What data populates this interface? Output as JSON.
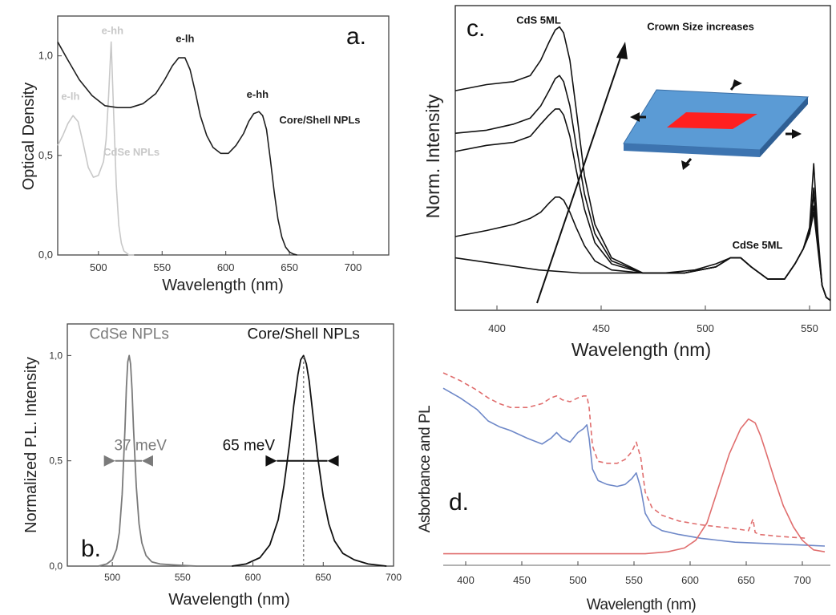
{
  "chart_data": [
    {
      "panel": "a.",
      "type": "line",
      "xlabel": "Wavelength (nm)",
      "ylabel": "Optical Density",
      "xlim": [
        468,
        728
      ],
      "ylim": [
        0,
        1.2
      ],
      "xticks": [
        {
          "v": 500,
          "l": "500"
        },
        {
          "v": 550,
          "l": "550"
        },
        {
          "v": 600,
          "l": "600"
        },
        {
          "v": 650,
          "l": "650"
        },
        {
          "v": 700,
          "l": "700"
        }
      ],
      "yticks": [
        {
          "v": 0,
          "l": "0,0"
        },
        {
          "v": 0.5,
          "l": "0,5"
        },
        {
          "v": 1.0,
          "l": "1,0"
        }
      ],
      "series": [
        {
          "name": "CdSe NPLs",
          "color": "#c8c8c8",
          "x": [
            468,
            472,
            476,
            480,
            484,
            488,
            492,
            496,
            500,
            504,
            506,
            508,
            510,
            512,
            514,
            516,
            518,
            520,
            522,
            524,
            528
          ],
          "y": [
            0.55,
            0.6,
            0.66,
            0.7,
            0.67,
            0.56,
            0.44,
            0.39,
            0.4,
            0.47,
            0.58,
            0.8,
            1.07,
            0.7,
            0.35,
            0.15,
            0.06,
            0.02,
            0.01,
            0.0,
            0.0
          ]
        },
        {
          "name": "Core/Shell NPLs",
          "color": "#1e1e1e",
          "x": [
            468,
            475,
            485,
            495,
            505,
            515,
            525,
            535,
            545,
            552,
            558,
            563,
            568,
            572,
            576,
            580,
            585,
            590,
            596,
            602,
            608,
            614,
            618,
            622,
            626,
            629,
            632,
            635,
            638,
            641,
            644,
            647,
            650,
            653,
            656
          ],
          "y": [
            1.07,
            0.99,
            0.88,
            0.8,
            0.75,
            0.74,
            0.74,
            0.76,
            0.81,
            0.88,
            0.95,
            0.99,
            0.99,
            0.93,
            0.82,
            0.7,
            0.6,
            0.54,
            0.51,
            0.51,
            0.55,
            0.61,
            0.67,
            0.71,
            0.72,
            0.7,
            0.63,
            0.48,
            0.32,
            0.18,
            0.09,
            0.04,
            0.015,
            0.005,
            0.0
          ]
        }
      ],
      "annotations": [
        {
          "text": "e-hh",
          "x": 511,
          "y": 1.11,
          "color": "#c8c8c8"
        },
        {
          "text": "e-lh",
          "x": 478,
          "y": 0.78,
          "color": "#c8c8c8"
        },
        {
          "text": "CdSe NPLs",
          "x": 526,
          "y": 0.5,
          "color": "#c8c8c8"
        },
        {
          "text": "e-lh",
          "x": 568,
          "y": 1.07,
          "color": "#1e1e1e"
        },
        {
          "text": "e-hh",
          "x": 625,
          "y": 0.79,
          "color": "#1e1e1e"
        },
        {
          "text": "Core/Shell NPLs",
          "x": 642,
          "y": 0.66,
          "color": "#1e1e1e"
        }
      ]
    },
    {
      "panel": "b.",
      "type": "line",
      "xlabel": "Wavelength (nm)",
      "ylabel": "Normalized P.L. Intensity",
      "xlim": [
        468,
        700
      ],
      "ylim": [
        0,
        1.15
      ],
      "xticks": [
        {
          "v": 500,
          "l": "500"
        },
        {
          "v": 550,
          "l": "550"
        },
        {
          "v": 600,
          "l": "600"
        },
        {
          "v": 650,
          "l": "650"
        },
        {
          "v": 700,
          "l": "700"
        }
      ],
      "yticks": [
        {
          "v": 0,
          "l": "0,0"
        },
        {
          "v": 0.5,
          "l": "0,5"
        },
        {
          "v": 1.0,
          "l": "1,0"
        }
      ],
      "series": [
        {
          "name": "CdSe NPLs",
          "color": "#7a7a7a",
          "x": [
            490,
            496,
            500,
            503,
            505,
            507,
            509,
            510,
            511,
            512,
            513,
            514,
            515,
            517,
            519,
            521,
            524,
            528,
            534,
            545,
            560
          ],
          "y": [
            0.0,
            0.01,
            0.03,
            0.08,
            0.16,
            0.34,
            0.65,
            0.85,
            0.97,
            1.0,
            0.96,
            0.84,
            0.66,
            0.38,
            0.2,
            0.11,
            0.05,
            0.02,
            0.01,
            0.005,
            0.0
          ]
        },
        {
          "name": "Core/Shell NPLs",
          "color": "#111111",
          "x": [
            585,
            595,
            605,
            612,
            618,
            622,
            626,
            629,
            632,
            634,
            636,
            638,
            640,
            643,
            646,
            650,
            654,
            658,
            664,
            672,
            682,
            695
          ],
          "y": [
            0.0,
            0.01,
            0.04,
            0.1,
            0.22,
            0.38,
            0.58,
            0.76,
            0.91,
            0.98,
            1.0,
            0.96,
            0.88,
            0.7,
            0.52,
            0.33,
            0.2,
            0.12,
            0.06,
            0.03,
            0.01,
            0.0
          ]
        }
      ],
      "annotations": [
        {
          "text": "CdSe NPLs",
          "x": 512,
          "y": 1.08,
          "color": "#7a7a7a"
        },
        {
          "text": "Core/Shell NPLs",
          "x": 636,
          "y": 1.08,
          "color": "#111111"
        },
        {
          "text": "37 meV",
          "x": 520,
          "y": 0.55,
          "color": "#7a7a7a"
        },
        {
          "text": "65 meV",
          "x": 597,
          "y": 0.55,
          "color": "#111111"
        }
      ],
      "fwhm": [
        {
          "x1": 502,
          "x2": 521,
          "y": 0.5,
          "color": "#7a7a7a"
        },
        {
          "x1": 617,
          "x2": 653,
          "y": 0.5,
          "color": "#111111"
        }
      ],
      "dotted_line_x": 636
    },
    {
      "panel": "c.",
      "type": "line",
      "xlabel": "Wavelength (nm)",
      "ylabel": "Norm. Intensity",
      "xlim": [
        380,
        560
      ],
      "ylim": [
        0,
        1.0
      ],
      "xticks": [
        {
          "v": 400,
          "l": "400"
        },
        {
          "v": 450,
          "l": "450"
        },
        {
          "v": 500,
          "l": "500"
        },
        {
          "v": 550,
          "l": "550"
        }
      ],
      "annotations": [
        {
          "text": "CdS 5ML",
          "x": 420,
          "y": 0.94,
          "color": "#111111"
        },
        {
          "text": "Crown Size increases",
          "x": 472,
          "y": 0.92,
          "color": "#111111"
        },
        {
          "text": "CdSe 5ML",
          "x": 525,
          "y": 0.2,
          "color": "#111111"
        }
      ],
      "series": [
        {
          "name": "",
          "color": "#111111",
          "x": [
            380,
            395,
            408,
            416,
            421,
            425,
            428,
            430,
            432,
            435,
            438,
            442,
            447,
            455,
            470,
            490,
            505,
            512,
            517,
            522,
            530,
            538,
            543,
            547,
            550,
            552,
            554,
            556,
            558,
            560
          ],
          "y": [
            0.72,
            0.74,
            0.75,
            0.77,
            0.82,
            0.88,
            0.92,
            0.93,
            0.91,
            0.82,
            0.66,
            0.44,
            0.28,
            0.17,
            0.12,
            0.12,
            0.14,
            0.17,
            0.17,
            0.14,
            0.1,
            0.1,
            0.15,
            0.2,
            0.25,
            0.32,
            0.2,
            0.08,
            0.04,
            0.03
          ]
        },
        {
          "name": "",
          "color": "#111111",
          "x": [
            380,
            395,
            408,
            416,
            421,
            425,
            428,
            430,
            432,
            435,
            438,
            442,
            447,
            455,
            470,
            490,
            505,
            512,
            517,
            522,
            530,
            538,
            543,
            547,
            550,
            552,
            554,
            556,
            558,
            560
          ],
          "y": [
            0.58,
            0.59,
            0.61,
            0.63,
            0.67,
            0.72,
            0.76,
            0.77,
            0.75,
            0.67,
            0.54,
            0.38,
            0.25,
            0.16,
            0.12,
            0.12,
            0.14,
            0.17,
            0.17,
            0.14,
            0.1,
            0.1,
            0.15,
            0.2,
            0.25,
            0.38,
            0.22,
            0.08,
            0.04,
            0.03
          ]
        },
        {
          "name": "",
          "color": "#111111",
          "x": [
            380,
            395,
            408,
            416,
            421,
            425,
            428,
            430,
            432,
            435,
            438,
            442,
            447,
            455,
            470,
            490,
            505,
            512,
            517,
            522,
            530,
            538,
            543,
            547,
            550,
            552,
            554,
            556,
            558,
            560
          ],
          "y": [
            0.52,
            0.54,
            0.55,
            0.57,
            0.61,
            0.64,
            0.66,
            0.66,
            0.64,
            0.57,
            0.46,
            0.33,
            0.22,
            0.15,
            0.12,
            0.12,
            0.14,
            0.17,
            0.17,
            0.14,
            0.1,
            0.1,
            0.15,
            0.2,
            0.26,
            0.34,
            0.21,
            0.08,
            0.04,
            0.03
          ]
        },
        {
          "name": "",
          "color": "#111111",
          "x": [
            380,
            395,
            408,
            416,
            421,
            425,
            428,
            430,
            432,
            435,
            438,
            442,
            447,
            455,
            470,
            490,
            505,
            512,
            517,
            522,
            530,
            538,
            543,
            547,
            550,
            552,
            554,
            556,
            558,
            560
          ],
          "y": [
            0.24,
            0.26,
            0.28,
            0.3,
            0.32,
            0.35,
            0.37,
            0.37,
            0.36,
            0.32,
            0.27,
            0.21,
            0.16,
            0.13,
            0.12,
            0.12,
            0.14,
            0.17,
            0.17,
            0.14,
            0.1,
            0.1,
            0.15,
            0.2,
            0.25,
            0.4,
            0.23,
            0.08,
            0.04,
            0.03
          ]
        },
        {
          "name": "",
          "color": "#111111",
          "x": [
            380,
            400,
            420,
            440,
            460,
            480,
            495,
            505,
            512,
            517,
            522,
            530,
            538,
            543,
            547,
            550,
            552,
            554,
            556,
            558,
            560
          ],
          "y": [
            0.17,
            0.15,
            0.13,
            0.12,
            0.12,
            0.12,
            0.13,
            0.15,
            0.17,
            0.17,
            0.14,
            0.1,
            0.1,
            0.15,
            0.2,
            0.27,
            0.48,
            0.25,
            0.08,
            0.04,
            0.03
          ]
        }
      ]
    },
    {
      "panel": "d.",
      "type": "line",
      "xlabel": "Wavelength (nm)",
      "ylabel": "Asborbance and PL",
      "xlim": [
        380,
        725
      ],
      "ylim": [
        0,
        1.0
      ],
      "xticks": [
        {
          "v": 400,
          "l": "400"
        },
        {
          "v": 450,
          "l": "450"
        },
        {
          "v": 500,
          "l": "500"
        },
        {
          "v": 550,
          "l": "550"
        },
        {
          "v": 600,
          "l": "600"
        },
        {
          "v": 650,
          "l": "650"
        },
        {
          "v": 700,
          "l": "700"
        }
      ],
      "series": [
        {
          "name": "",
          "color": "#6e88c8",
          "dash": false,
          "x": [
            380,
            395,
            410,
            420,
            430,
            440,
            455,
            468,
            476,
            481,
            486,
            493,
            500,
            505,
            508,
            510,
            513,
            518,
            526,
            535,
            542,
            548,
            552,
            556,
            560,
            566,
            575,
            590,
            610,
            640,
            680,
            720
          ],
          "y": [
            0.92,
            0.87,
            0.81,
            0.75,
            0.72,
            0.7,
            0.66,
            0.63,
            0.66,
            0.69,
            0.66,
            0.64,
            0.69,
            0.71,
            0.73,
            0.66,
            0.5,
            0.44,
            0.42,
            0.41,
            0.42,
            0.45,
            0.48,
            0.4,
            0.27,
            0.21,
            0.18,
            0.16,
            0.14,
            0.12,
            0.11,
            0.1
          ]
        },
        {
          "name": "",
          "color": "#e06e6e",
          "dash": true,
          "x": [
            380,
            395,
            410,
            420,
            430,
            440,
            455,
            468,
            476,
            481,
            486,
            493,
            500,
            505,
            508,
            510,
            513,
            518,
            526,
            535,
            542,
            548,
            552,
            556,
            560,
            566,
            575,
            590,
            610,
            640,
            652,
            656,
            658,
            662,
            680,
            705
          ],
          "y": [
            1.0,
            0.96,
            0.91,
            0.87,
            0.84,
            0.82,
            0.82,
            0.84,
            0.87,
            0.88,
            0.86,
            0.85,
            0.87,
            0.88,
            0.88,
            0.82,
            0.62,
            0.54,
            0.53,
            0.53,
            0.55,
            0.59,
            0.64,
            0.56,
            0.38,
            0.3,
            0.26,
            0.23,
            0.21,
            0.19,
            0.18,
            0.24,
            0.17,
            0.16,
            0.15,
            0.14
          ]
        },
        {
          "name": "",
          "color": "#e06e6e",
          "dash": false,
          "x": [
            380,
            560,
            580,
            595,
            605,
            615,
            625,
            635,
            645,
            652,
            658,
            663,
            668,
            675,
            683,
            692,
            700,
            710,
            720
          ],
          "y": [
            0.06,
            0.06,
            0.07,
            0.09,
            0.13,
            0.22,
            0.4,
            0.58,
            0.71,
            0.76,
            0.74,
            0.67,
            0.58,
            0.45,
            0.31,
            0.2,
            0.13,
            0.08,
            0.07
          ]
        }
      ]
    }
  ]
}
